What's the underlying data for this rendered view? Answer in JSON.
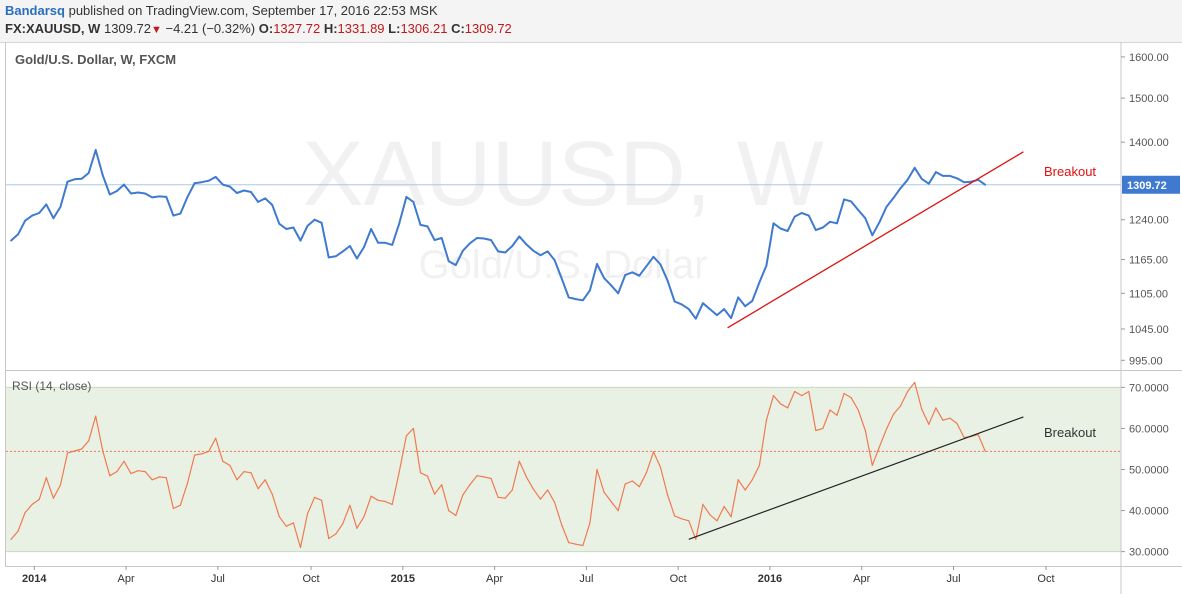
{
  "header": {
    "author": "Bandarsq",
    "published": "published on TradingView.com, September 17, 2016 22:53 MSK",
    "symbol": "FX:XAUUSD, W",
    "last": "1309.72",
    "down_arrow": "▼",
    "change": "−4.21 (−0.32%)",
    "o_label": "O:",
    "o_value": "1327.72",
    "h_label": "H:",
    "h_value": "1331.89",
    "l_label": "L:",
    "l_value": "1306.21",
    "c_label": "C:",
    "c_value": "1309.72"
  },
  "colors": {
    "price_line": "#3f7ad0",
    "rsi_line": "#f07a50",
    "trend_red": "#e01010",
    "trend_black": "#222222",
    "rsi_band": "#e9f1e5",
    "price_marker": "#3f7ad0"
  },
  "chart_data": [
    {
      "type": "line",
      "title": "Gold/U.S. Dollar, W, FXCM",
      "watermark": "XAUUSD, W",
      "watermark_sub": "Gold/U.S. Dollar",
      "x_ticks": [
        "2014",
        "Apr",
        "Jul",
        "Oct",
        "2015",
        "Apr",
        "Jul",
        "Oct",
        "2016",
        "Apr",
        "Jul",
        "Oct"
      ],
      "y_ticks": [
        "1600.00",
        "1500.00",
        "1400.00",
        "1240.00",
        "1165.00",
        "1105.00",
        "1045.00",
        "995.00"
      ],
      "y_scale": "log",
      "ylim": [
        980,
        1625
      ],
      "last_value": 1309.72,
      "last_label": "1309.72",
      "annotation": "Breakout",
      "trendline": {
        "from": [
          101.5,
          1047
        ],
        "to": [
          143.4,
          1379
        ]
      },
      "series": [
        {
          "values": [
            1200,
            1212,
            1238,
            1248,
            1253,
            1270,
            1243,
            1265,
            1316,
            1321,
            1322,
            1334,
            1383,
            1329,
            1290,
            1297,
            1310,
            1292,
            1294,
            1292,
            1284,
            1286,
            1285,
            1248,
            1252,
            1285,
            1313,
            1315,
            1318,
            1326,
            1310,
            1306,
            1293,
            1298,
            1295,
            1275,
            1282,
            1269,
            1232,
            1222,
            1225,
            1200,
            1228,
            1240,
            1234,
            1169,
            1171,
            1180,
            1190,
            1167,
            1188,
            1222,
            1196,
            1196,
            1192,
            1233,
            1285,
            1275,
            1230,
            1227,
            1201,
            1205,
            1162,
            1155,
            1181,
            1195,
            1205,
            1204,
            1201,
            1180,
            1178,
            1190,
            1208,
            1193,
            1181,
            1173,
            1180,
            1164,
            1131,
            1098,
            1095,
            1093,
            1110,
            1157,
            1132,
            1119,
            1105,
            1137,
            1142,
            1136,
            1153,
            1170,
            1156,
            1127,
            1091,
            1086,
            1078,
            1062,
            1088,
            1078,
            1068,
            1078,
            1063,
            1098,
            1083,
            1092,
            1124,
            1154,
            1233,
            1223,
            1218,
            1246,
            1253,
            1248,
            1220,
            1225,
            1236,
            1233,
            1280,
            1276,
            1259,
            1243,
            1210,
            1235,
            1265,
            1283,
            1303,
            1320,
            1345,
            1322,
            1312,
            1336,
            1328,
            1328,
            1323,
            1315,
            1316,
            1320,
            1309.72
          ]
        }
      ]
    },
    {
      "type": "line",
      "title": "RSI (14, close)",
      "x_ticks": [
        "2014",
        "Apr",
        "Jul",
        "Oct",
        "2015",
        "Apr",
        "Jul",
        "Oct",
        "2016",
        "Apr",
        "Jul",
        "Oct"
      ],
      "y_ticks": [
        "70.0000",
        "60.0000",
        "50.0000",
        "40.0000",
        "30.0000"
      ],
      "ylim": [
        26.5,
        73.5
      ],
      "band": [
        30,
        70
      ],
      "last_value": 54.4,
      "annotation": "Breakout",
      "trendline": {
        "from": [
          96,
          33
        ],
        "to": [
          143.4,
          62.8
        ]
      },
      "series": [
        {
          "values": [
            33,
            35,
            39.5,
            41.5,
            42.7,
            48,
            43,
            46.2,
            54,
            54.5,
            55,
            57,
            63,
            54.5,
            48.5,
            49.5,
            52,
            49,
            49.7,
            49.5,
            47.5,
            48.2,
            48,
            40.5,
            41.3,
            46.7,
            53.5,
            53.8,
            54.4,
            57.6,
            52,
            51,
            47.5,
            49.5,
            49.2,
            45.3,
            47.5,
            44,
            38.5,
            36.2,
            37,
            31,
            39.2,
            43.2,
            42.5,
            33.2,
            34.3,
            36.8,
            41.3,
            35.7,
            38.5,
            43.5,
            42.5,
            42.2,
            41.5,
            49.5,
            58.2,
            60,
            49.2,
            48.4,
            44,
            46.3,
            40,
            38.8,
            43.8,
            46.3,
            48.5,
            48.2,
            47.8,
            43.2,
            43,
            45,
            52,
            48.2,
            45.2,
            42.8,
            45,
            42,
            36.5,
            32.2,
            31.8,
            31.5,
            37,
            50,
            44.5,
            42.2,
            40,
            46.5,
            47.2,
            45.8,
            49.2,
            54.3,
            50.5,
            43.8,
            38.7,
            38,
            37.5,
            33,
            41.5,
            39,
            37.5,
            41,
            38.5,
            47.5,
            45,
            47.5,
            51,
            62,
            68,
            66,
            65,
            69,
            68,
            69,
            59.5,
            60,
            64.5,
            63.2,
            68.5,
            67.5,
            64.5,
            59.5,
            51,
            55.5,
            59.8,
            63.5,
            65.5,
            69,
            71.2,
            64.7,
            61,
            65,
            62,
            62.5,
            61.2,
            57.8,
            58,
            58.5,
            54.4
          ]
        }
      ]
    }
  ]
}
